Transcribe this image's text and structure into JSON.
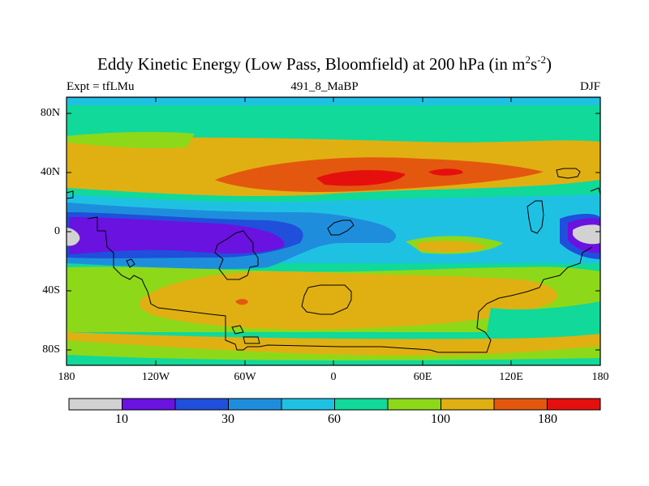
{
  "title": {
    "main": "Eddy Kinetic Energy (Low Pass, Bloomfield) at 200 hPa (in m",
    "sup1": "2",
    "mid": "s",
    "sup2": "-2",
    "end": ")"
  },
  "subtitle": {
    "left": "Expt = tfLMu",
    "center": "491_8_MaBP",
    "right": "DJF"
  },
  "axes": {
    "y_ticks": [
      "80N",
      "40N",
      "0",
      "40S",
      "80S"
    ],
    "x_ticks": [
      "180",
      "120W",
      "60W",
      "0",
      "60E",
      "120E",
      "180"
    ]
  },
  "colorbar": {
    "labels": [
      "10",
      "30",
      "60",
      "100",
      "180"
    ],
    "colors": [
      "#d2d2d2",
      "#6a12e0",
      "#1f4fdb",
      "#1e8edc",
      "#1fc1e3",
      "#10d99a",
      "#8ed81a",
      "#e0b012",
      "#e3580e",
      "#e5100e"
    ]
  },
  "map_colors": {
    "gray": "#d2d2d2",
    "purple": "#6a12e0",
    "blue": "#1f4fdb",
    "medblue": "#1e8edc",
    "cyan": "#1fc1e3",
    "teal": "#10d99a",
    "green": "#8ed81a",
    "yellow": "#e0b012",
    "orange": "#e3580e",
    "red": "#e5100e"
  }
}
